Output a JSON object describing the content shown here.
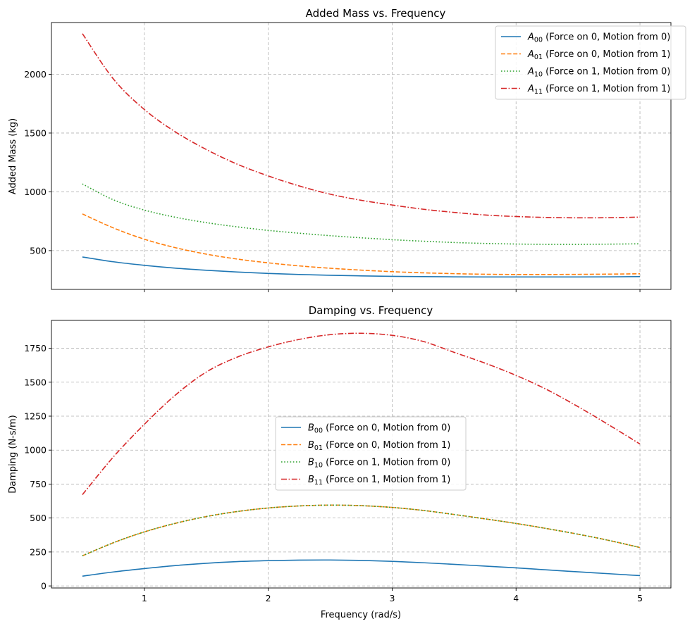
{
  "chart_data": [
    {
      "type": "line",
      "title": "Added Mass vs. Frequency",
      "xlabel": "",
      "ylabel": "Added Mass (kg)",
      "xlim": [
        0.25,
        5.25
      ],
      "ylim": [
        170,
        2440
      ],
      "xticks": [
        1,
        2,
        3,
        4,
        5
      ],
      "xtick_labels_visible": false,
      "yticks": [
        500,
        1000,
        1500,
        2000
      ],
      "ytick_labels": [
        "500",
        "1000",
        "1500",
        "2000"
      ],
      "grid": true,
      "legend_position": "upper right",
      "x": [
        0.5,
        0.75,
        1.0,
        1.25,
        1.5,
        1.75,
        2.0,
        2.25,
        2.5,
        2.75,
        3.0,
        3.25,
        3.5,
        3.75,
        4.0,
        4.25,
        4.5,
        4.75,
        5.0
      ],
      "series": [
        {
          "id": "A00",
          "symbol": "A",
          "sub": "00",
          "label": "(Force on 0, Motion from 0)",
          "color": "#1f77b4",
          "dash": "solid",
          "values": [
            446,
            405,
            375,
            351,
            333,
            318,
            306,
            297,
            290,
            285,
            281,
            279,
            277,
            276,
            276,
            276,
            276,
            277,
            279
          ]
        },
        {
          "id": "A01",
          "symbol": "A",
          "sub": "01",
          "label": "(Force on 0, Motion from 1)",
          "color": "#ff7f0e",
          "dash": "dashed",
          "values": [
            812,
            693,
            597,
            525,
            470,
            428,
            396,
            370,
            350,
            334,
            321,
            311,
            304,
            299,
            297,
            297,
            298,
            300,
            303
          ]
        },
        {
          "id": "A10",
          "symbol": "A",
          "sub": "10",
          "label": "(Force on 1, Motion from 0)",
          "color": "#2ca02c",
          "dash": "dotted",
          "values": [
            1067,
            932,
            845,
            784,
            738,
            702,
            672,
            648,
            627,
            609,
            593,
            580,
            569,
            561,
            556,
            553,
            553,
            555,
            558
          ]
        },
        {
          "id": "A11",
          "symbol": "A",
          "sub": "11",
          "label": "(Force on 1, Motion from 1)",
          "color": "#d62728",
          "dash": "dashdot",
          "values": [
            2345,
            1960,
            1700,
            1510,
            1360,
            1235,
            1135,
            1050,
            980,
            928,
            888,
            852,
            825,
            803,
            790,
            782,
            779,
            780,
            785
          ]
        }
      ]
    },
    {
      "type": "line",
      "title": "Damping vs. Frequency",
      "xlabel": "Frequency (rad/s)",
      "ylabel": "Damping (N-s/m)",
      "xlim": [
        0.25,
        5.25
      ],
      "ylim": [
        -15,
        1955
      ],
      "xticks": [
        1,
        2,
        3,
        4,
        5
      ],
      "xtick_labels": [
        "1",
        "2",
        "3",
        "4",
        "5"
      ],
      "yticks": [
        0,
        250,
        500,
        750,
        1000,
        1250,
        1500,
        1750
      ],
      "ytick_labels": [
        "0",
        "250",
        "500",
        "750",
        "1000",
        "1250",
        "1500",
        "1750"
      ],
      "grid": true,
      "legend_position": "center",
      "x": [
        0.5,
        0.75,
        1.0,
        1.25,
        1.5,
        1.75,
        2.0,
        2.25,
        2.5,
        2.75,
        3.0,
        3.25,
        3.5,
        3.75,
        4.0,
        4.25,
        4.5,
        4.75,
        5.0
      ],
      "series": [
        {
          "id": "B00",
          "symbol": "B",
          "sub": "00",
          "label": "(Force on 0, Motion from 0)",
          "color": "#1f77b4",
          "dash": "solid",
          "values": [
            72,
            103,
            128,
            150,
            167,
            179,
            186,
            190,
            191,
            188,
            181,
            171,
            159,
            146,
            133,
            118,
            104,
            90,
            76
          ]
        },
        {
          "id": "B01",
          "symbol": "B",
          "sub": "01",
          "label": "(Force on 0, Motion from 1)",
          "color": "#ff7f0e",
          "dash": "dashed",
          "values": [
            222,
            318,
            398,
            461,
            511,
            548,
            574,
            589,
            595,
            591,
            578,
            556,
            526,
            494,
            460,
            422,
            381,
            335,
            283
          ]
        },
        {
          "id": "B10",
          "symbol": "B",
          "sub": "10",
          "label": "(Force on 1, Motion from 0)",
          "color": "#2ca02c",
          "dash": "dotted",
          "values": [
            222,
            318,
            398,
            461,
            511,
            548,
            574,
            589,
            595,
            591,
            578,
            556,
            526,
            494,
            460,
            422,
            381,
            335,
            283
          ]
        },
        {
          "id": "B11",
          "symbol": "B",
          "sub": "11",
          "label": "(Force on 1, Motion from 1)",
          "color": "#d62728",
          "dash": "dashdot",
          "values": [
            672,
            950,
            1190,
            1405,
            1575,
            1685,
            1760,
            1815,
            1850,
            1860,
            1845,
            1800,
            1720,
            1640,
            1550,
            1445,
            1320,
            1185,
            1045
          ]
        }
      ]
    }
  ]
}
